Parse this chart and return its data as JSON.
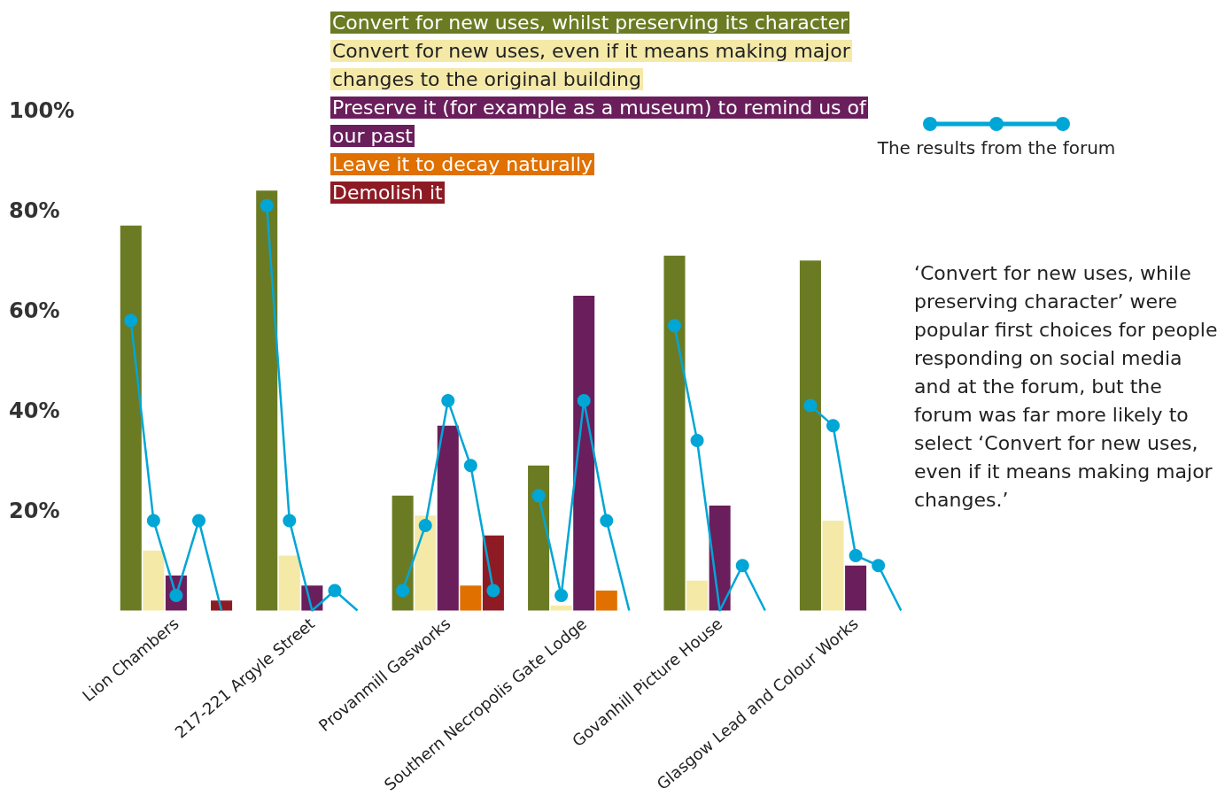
{
  "chart_data": {
    "type": "bar",
    "categories": [
      null,
      null,
      "Lion Chambers",
      null,
      null,
      null,
      null,
      null,
      "217-221 Argyle Street",
      null,
      null,
      null,
      null,
      null,
      "Provanmill Gasworks",
      null,
      null,
      null,
      null,
      null,
      "Southern Necropolis Gate Lodge",
      null,
      null,
      null,
      null,
      null,
      "Govanhill Picture House",
      null,
      null,
      null,
      null,
      null,
      "Glasgow Lead and Colour Works",
      null,
      null
    ],
    "series": [
      {
        "name": "Convert for new uses, whilst preserving its character",
        "color": "#6b7b23",
        "values": [
          77,
          null,
          null,
          null,
          null,
          null,
          84,
          null,
          null,
          null,
          null,
          null,
          23,
          null,
          null,
          null,
          null,
          null,
          29,
          null,
          null,
          null,
          null,
          null,
          71,
          null,
          null,
          null,
          null,
          null,
          70,
          null,
          null,
          null,
          null
        ]
      },
      {
        "name": "Convert for new uses, even if it means making major changes to the original building",
        "color": "#f5e9a8",
        "values": [
          null,
          12,
          null,
          null,
          null,
          null,
          null,
          11,
          null,
          null,
          null,
          null,
          null,
          19,
          null,
          null,
          null,
          null,
          null,
          1,
          null,
          null,
          null,
          null,
          null,
          6,
          null,
          null,
          null,
          null,
          null,
          18,
          null,
          null,
          null
        ]
      },
      {
        "name": "Preserve it (for example as a museum) to remind us of our past",
        "color": "#6a1e5c",
        "values": [
          null,
          null,
          7,
          null,
          null,
          null,
          null,
          null,
          5,
          null,
          null,
          null,
          null,
          null,
          37,
          null,
          null,
          null,
          null,
          null,
          63,
          null,
          null,
          null,
          null,
          null,
          21,
          null,
          null,
          null,
          null,
          null,
          9,
          null,
          null
        ]
      },
      {
        "name": "Leave it to decay naturally",
        "color": "#e07000",
        "values": [
          null,
          null,
          null,
          0,
          null,
          null,
          null,
          null,
          null,
          0,
          null,
          null,
          null,
          null,
          null,
          5,
          null,
          null,
          null,
          null,
          null,
          4,
          null,
          null,
          null,
          null,
          null,
          0,
          null,
          null,
          null,
          null,
          null,
          0,
          null
        ]
      },
      {
        "name": "Demolish it",
        "color": "#8e1b24",
        "values": [
          null,
          null,
          null,
          null,
          2,
          null,
          null,
          null,
          null,
          null,
          0,
          null,
          null,
          null,
          null,
          null,
          15,
          null,
          null,
          null,
          null,
          null,
          0,
          null,
          null,
          null,
          null,
          null,
          0,
          null,
          null,
          null,
          null,
          null,
          0
        ]
      },
      {
        "name": "The results from the forum",
        "type": "line",
        "color": "#00a6d6",
        "marker": "circle",
        "values": [
          58,
          18,
          3,
          18,
          0,
          null,
          81,
          18,
          0,
          4,
          0,
          null,
          4,
          17,
          42,
          29,
          4,
          null,
          23,
          3,
          42,
          18,
          0,
          null,
          57,
          34,
          0,
          9,
          0,
          null,
          41,
          37,
          11,
          9,
          0
        ]
      }
    ],
    "ylim": [
      0,
      100
    ],
    "yticks": [
      {
        "value": 20,
        "label": "20%"
      },
      {
        "value": 40,
        "label": "40%"
      },
      {
        "value": 60,
        "label": "60%"
      },
      {
        "value": 80,
        "label": "80%"
      },
      {
        "value": 100,
        "label": "100%"
      }
    ],
    "grid": false,
    "legend": "top",
    "annotations": [
      "‘Convert for new uses, while preserving character’ were popular first choices for people responding on social media and at the forum, but the forum was far more likely to select ‘Convert for new uses, even if it means making major changes.’"
    ]
  }
}
